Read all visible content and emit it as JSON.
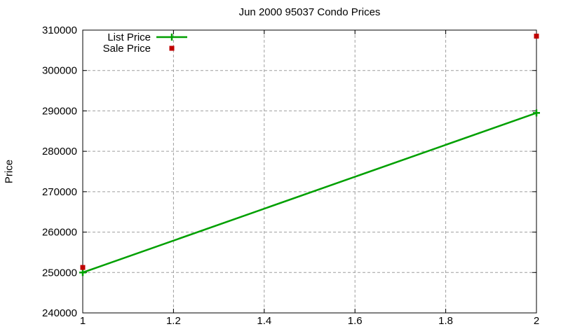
{
  "chart_data": {
    "type": "line",
    "title": "Jun 2000 95037 Condo Prices",
    "xlabel": "",
    "ylabel": "Price",
    "xlim": [
      1,
      2
    ],
    "ylim": [
      240000,
      310000
    ],
    "x_ticks": [
      1,
      1.2,
      1.4,
      1.6,
      1.8,
      2
    ],
    "x_tick_labels": [
      "1",
      "1.2",
      "1.4",
      "1.6",
      "1.8",
      "2"
    ],
    "y_ticks": [
      240000,
      250000,
      260000,
      270000,
      280000,
      290000,
      300000,
      310000
    ],
    "y_tick_labels": [
      "240000",
      "250000",
      "260000",
      "270000",
      "280000",
      "290000",
      "300000",
      "310000"
    ],
    "grid": "dashed",
    "grid_color": "#9e9e9e",
    "border_color": "#000000",
    "legend_position": "top-left-inside",
    "series": [
      {
        "name": "List Price",
        "style": "line-with-plus-markers",
        "color": "#00a000",
        "x": [
          1,
          2
        ],
        "y": [
          250000,
          289500
        ]
      },
      {
        "name": "Sale Price",
        "style": "square-points",
        "color": "#c00000",
        "x": [
          1,
          2
        ],
        "y": [
          251250,
          308500
        ]
      }
    ]
  }
}
